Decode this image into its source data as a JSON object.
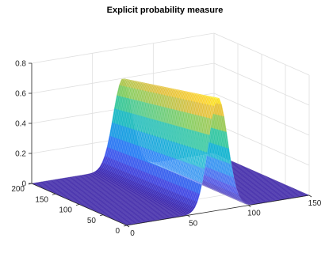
{
  "chart_data": {
    "type": "surface",
    "title": "Explicit probability measure",
    "xlabel": "",
    "ylabel": "",
    "zlabel": "",
    "colormap": "parula",
    "grid": true,
    "xlim": [
      0,
      150
    ],
    "ylim": [
      0,
      200
    ],
    "zlim": [
      0,
      0.8
    ],
    "x_ticks": [
      0,
      50,
      100,
      150
    ],
    "x_tick_labels": [
      "0",
      "50",
      "100",
      "150"
    ],
    "y_ticks": [
      0,
      50,
      100,
      150,
      200
    ],
    "y_tick_labels": [
      "0",
      "50",
      "100",
      "150",
      "200"
    ],
    "z_ticks": [
      0,
      0.2,
      0.4,
      0.6,
      0.8
    ],
    "z_tick_labels": [
      "0",
      "0.2",
      "0.4",
      "0.6",
      "0.8"
    ],
    "ridge": {
      "axis": "x",
      "center_x": 75,
      "peak_at_y0": 0.75,
      "peak_at_y200": 0.6,
      "y_range": [
        0,
        200
      ],
      "base_value": 0
    }
  },
  "colors": {
    "background": "#ffffff",
    "grid": "#dfdfdf",
    "axis": "#262626",
    "surface_low": "#3e26a8",
    "surface_high": "#f9fb0e"
  }
}
